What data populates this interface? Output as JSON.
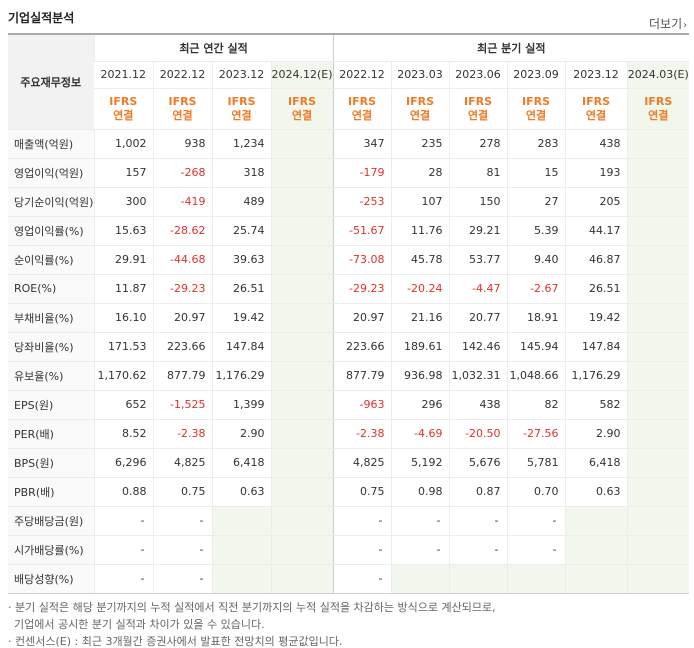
{
  "section_title": "기업실적분석",
  "more_label": "더보기",
  "more_icon": "chevron-right-icon",
  "header": {
    "label_col": "주요재무정보",
    "annual_group": "최근 연간 실적",
    "quarter_group": "최근 분기 실적",
    "periods": [
      "2021.12",
      "2022.12",
      "2023.12",
      "2024.12(E)",
      "2022.12",
      "2023.03",
      "2023.06",
      "2023.09",
      "2023.12",
      "2024.03(E)"
    ],
    "standard": [
      "IFRS",
      "IFRS",
      "IFRS",
      "IFRS",
      "IFRS",
      "IFRS",
      "IFRS",
      "IFRS",
      "IFRS",
      "IFRS"
    ],
    "basis": [
      "연결",
      "연결",
      "연결",
      "연결",
      "연결",
      "연결",
      "연결",
      "연결",
      "연결",
      "연결"
    ]
  },
  "rows": [
    {
      "label": "매출액(억원)",
      "values": [
        "1,002",
        "938",
        "1,234",
        "",
        "347",
        "235",
        "278",
        "283",
        "438",
        ""
      ]
    },
    {
      "label": "영업이익(억원)",
      "values": [
        "157",
        "-268",
        "318",
        "",
        "-179",
        "28",
        "81",
        "15",
        "193",
        ""
      ]
    },
    {
      "label": "당기순이익(억원)",
      "values": [
        "300",
        "-419",
        "489",
        "",
        "-253",
        "107",
        "150",
        "27",
        "205",
        ""
      ]
    },
    {
      "label": "영업이익률(%)",
      "values": [
        "15.63",
        "-28.62",
        "25.74",
        "",
        "-51.67",
        "11.76",
        "29.21",
        "5.39",
        "44.17",
        ""
      ]
    },
    {
      "label": "순이익률(%)",
      "values": [
        "29.91",
        "-44.68",
        "39.63",
        "",
        "-73.08",
        "45.78",
        "53.77",
        "9.40",
        "46.87",
        ""
      ]
    },
    {
      "label": "ROE(%)",
      "values": [
        "11.87",
        "-29.23",
        "26.51",
        "",
        "-29.23",
        "-20.24",
        "-4.47",
        "-2.67",
        "26.51",
        ""
      ]
    },
    {
      "label": "부채비율(%)",
      "values": [
        "16.10",
        "20.97",
        "19.42",
        "",
        "20.97",
        "21.16",
        "20.77",
        "18.91",
        "19.42",
        ""
      ]
    },
    {
      "label": "당좌비율(%)",
      "values": [
        "171.53",
        "223.66",
        "147.84",
        "",
        "223.66",
        "189.61",
        "142.46",
        "145.94",
        "147.84",
        ""
      ]
    },
    {
      "label": "유보율(%)",
      "values": [
        "1,170.62",
        "877.79",
        "1,176.29",
        "",
        "877.79",
        "936.98",
        "1,032.31",
        "1,048.66",
        "1,176.29",
        ""
      ]
    },
    {
      "label": "EPS(원)",
      "values": [
        "652",
        "-1,525",
        "1,399",
        "",
        "-963",
        "296",
        "438",
        "82",
        "582",
        ""
      ]
    },
    {
      "label": "PER(배)",
      "values": [
        "8.52",
        "-2.38",
        "2.90",
        "",
        "-2.38",
        "-4.69",
        "-20.50",
        "-27.56",
        "2.90",
        ""
      ]
    },
    {
      "label": "BPS(원)",
      "values": [
        "6,296",
        "4,825",
        "6,418",
        "",
        "4,825",
        "5,192",
        "5,676",
        "5,781",
        "6,418",
        ""
      ]
    },
    {
      "label": "PBR(배)",
      "values": [
        "0.88",
        "0.75",
        "0.63",
        "",
        "0.75",
        "0.98",
        "0.87",
        "0.70",
        "0.63",
        ""
      ]
    },
    {
      "label": "주당배당금(원)",
      "values": [
        "-",
        "-",
        "",
        "",
        "-",
        "-",
        "-",
        "-",
        "",
        ""
      ]
    },
    {
      "label": "시가배당률(%)",
      "values": [
        "-",
        "-",
        "",
        "",
        "-",
        "-",
        "-",
        "-",
        "",
        ""
      ]
    },
    {
      "label": "배당성향(%)",
      "values": [
        "-",
        "-",
        "",
        "",
        "-",
        "",
        "",
        "",
        "",
        ""
      ]
    }
  ],
  "colors": {
    "negative": "#e0322b",
    "standard_text": "#f07b24",
    "estimate_bg": "#f2f7ed",
    "label_bg": "#f2f2f2"
  },
  "notes": [
    "· 분기 실적은 해당 분기까지의 누적 실적에서 직전 분기까지의 누적 실적을 차감하는 방식으로 계산되므로,",
    "기업에서 공시한 분기 실적과 차이가 있을 수 있습니다.",
    "· 컨센서스(E) : 최근 3개월간 증권사에서 발표한 전망치의 평균값입니다."
  ]
}
